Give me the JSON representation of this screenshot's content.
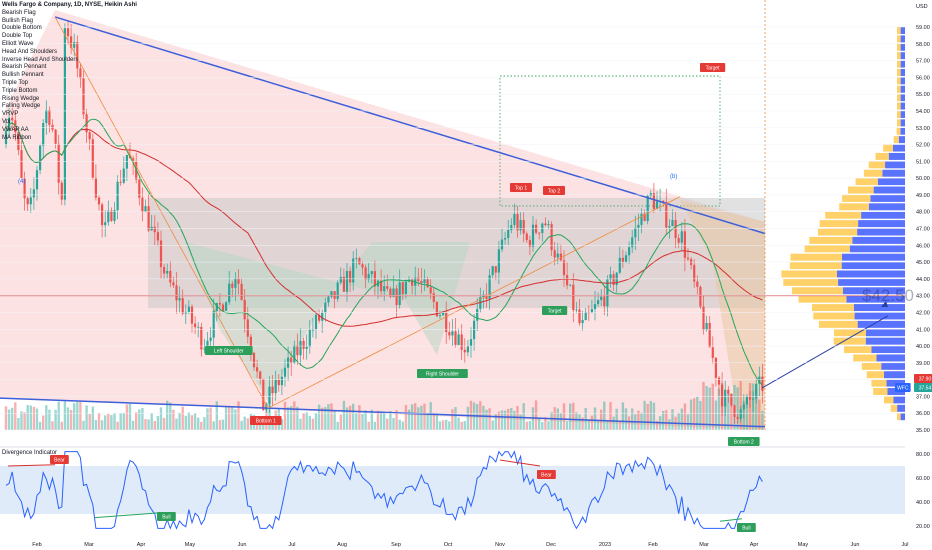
{
  "header": {
    "title": "Wells Fargo & Company, 1D, NYSE, Heikin Ashi",
    "indicators": [
      "Bearish Flag",
      "Bullish Flag",
      "Double Bottom",
      "Double Top",
      "Elliott Wave",
      "Head And Shoulders",
      "Inverse Head And Shoulders",
      "Bearish Pennant",
      "Bullish Pennant",
      "Triple Top",
      "Triple Bottom",
      "Rising Wedge",
      "Falling Wedge",
      "VRVP",
      "Vol",
      "VWAP AA",
      "MA Ribbon"
    ]
  },
  "colors": {
    "up": "#26a69a",
    "down": "#ef5350",
    "wedge_fill": "#fbd5d5",
    "rect_fill": "#d3d3d3",
    "trend_blue": "#3d5fd9",
    "ma_green": "#26a65b",
    "ma_red": "#d32f2f",
    "vp_blue": "#3d5afe",
    "vp_yellow": "#ffc94d",
    "osc_line": "#2962ff",
    "osc_band": "#d7e6f8"
  },
  "currency": "USD",
  "price_scale": {
    "ticks": [
      59,
      58,
      57,
      56,
      55,
      54,
      53,
      52,
      51,
      50,
      49,
      48,
      47,
      46,
      45,
      44,
      43,
      42,
      41,
      40,
      39,
      38,
      37,
      36,
      35
    ],
    "labels": [
      "59.00",
      "58.00",
      "57.00",
      "56.00",
      "55.00",
      "54.00",
      "53.00",
      "52.00",
      "51.00",
      "50.00",
      "49.00",
      "48.00",
      "47.00",
      "46.00",
      "45.00",
      "44.00",
      "43.00",
      "42.00",
      "41.00",
      "40.00",
      "39.00",
      "38.00",
      "37.00",
      "36.00",
      "35.00"
    ]
  },
  "time_axis": [
    "Feb",
    "Mar",
    "Apr",
    "May",
    "Jun",
    "Jul",
    "Aug",
    "Sep",
    "Oct",
    "Nov",
    "Dec",
    "2023",
    "Feb",
    "Mar",
    "Apr",
    "May",
    "Jun",
    "Jul"
  ],
  "annotations": {
    "wave_4": "(4)",
    "wave_b": "(b)",
    "top1": "Top 1",
    "top2": "Top 2",
    "target": "Target",
    "target2": "Target",
    "left_shoulder": "Left Shoulder",
    "right_shoulder": "Right Shoulder",
    "bottom1": "Bottom 1",
    "bottom2": "Bottom 2",
    "price_callout": "$42.50",
    "wfc_badge": "WFC",
    "last_price_1": "37.90",
    "last_price_2": "37.54"
  },
  "oscillator": {
    "title": "Divergence Indicator",
    "ticks": [
      80,
      60,
      40,
      20
    ],
    "labels": [
      "80.00",
      "60.00",
      "40.00",
      "20.00"
    ],
    "band": [
      70,
      30
    ],
    "bear_label": "Bear",
    "bull_label": "Bull"
  },
  "chart_data": {
    "type": "candlestick",
    "title": "Wells Fargo & Company, 1D, NYSE, Heikin Ashi",
    "y_range": [
      34.6,
      60.2
    ],
    "x_start": "2022-01-15",
    "key_points": [
      {
        "x": "2022-02-18",
        "y": 59.6
      },
      {
        "x": "2022-02-25",
        "y": 57.5
      },
      {
        "x": "2022-03-14",
        "y": 46.5
      },
      {
        "x": "2022-03-28",
        "y": 51.5
      },
      {
        "x": "2022-04-20",
        "y": 44.0
      },
      {
        "x": "2022-05-12",
        "y": 40.2
      },
      {
        "x": "2022-05-31",
        "y": 44.5
      },
      {
        "x": "2022-06-16",
        "y": 36.4
      },
      {
        "x": "2022-07-08",
        "y": 40.0
      },
      {
        "x": "2022-08-10",
        "y": 44.9
      },
      {
        "x": "2022-08-30",
        "y": 42.6
      },
      {
        "x": "2022-09-12",
        "y": 44.3
      },
      {
        "x": "2022-10-13",
        "y": 39.9
      },
      {
        "x": "2022-10-25",
        "y": 43.2
      },
      {
        "x": "2022-11-10",
        "y": 47.7
      },
      {
        "x": "2022-11-18",
        "y": 46.2
      },
      {
        "x": "2022-11-28",
        "y": 47.6
      },
      {
        "x": "2022-12-20",
        "y": 41.0
      },
      {
        "x": "2023-01-05",
        "y": 43.4
      },
      {
        "x": "2023-01-30",
        "y": 48.9
      },
      {
        "x": "2023-02-17",
        "y": 46.5
      },
      {
        "x": "2023-03-13",
        "y": 37.0
      },
      {
        "x": "2023-03-24",
        "y": 36.0
      },
      {
        "x": "2023-04-05",
        "y": 37.7
      }
    ],
    "last_price": 37.54,
    "horizontal_level": 43.0,
    "oscillator_range": [
      15,
      85
    ]
  }
}
